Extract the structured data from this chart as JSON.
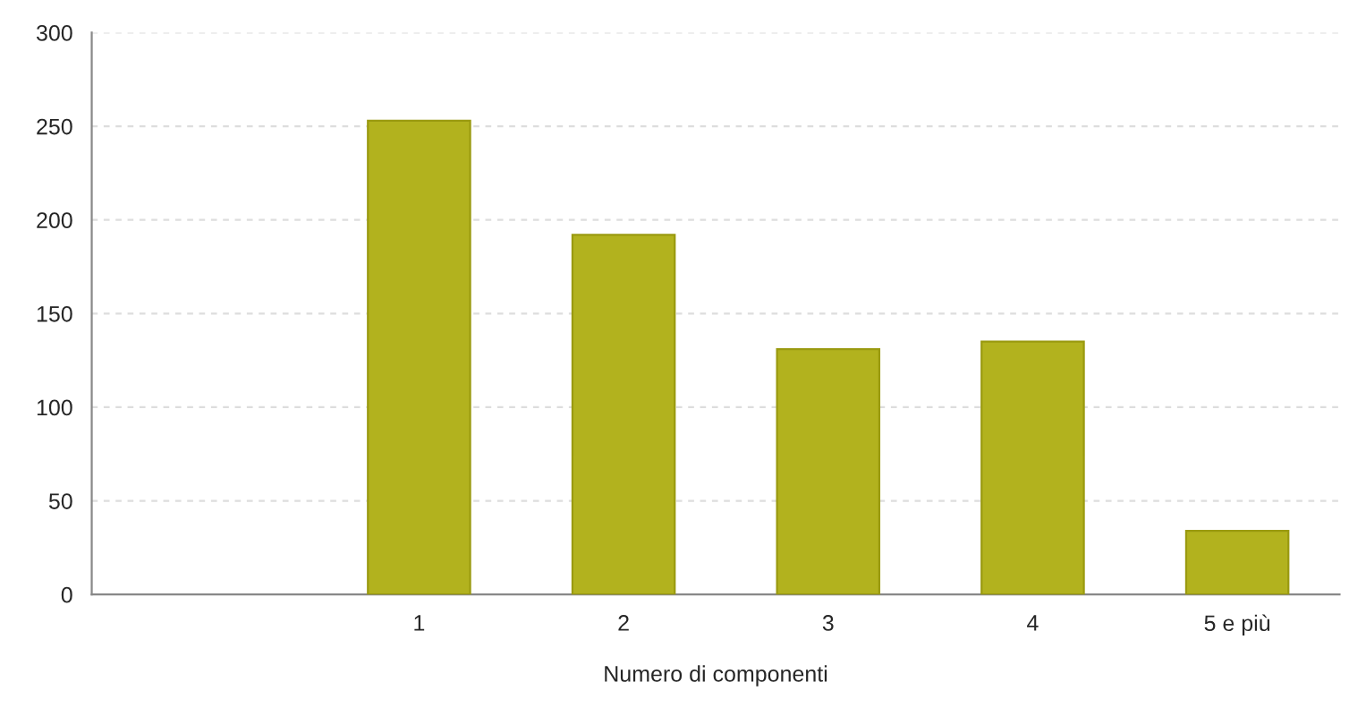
{
  "chart_data": {
    "type": "bar",
    "xlabel": "Numero di componenti",
    "categories": [
      null,
      "1",
      "2",
      "3",
      "4",
      "5 e più"
    ],
    "values": [
      null,
      253,
      192,
      131,
      135,
      34
    ],
    "color": "#b2b21e",
    "ylim": [
      0,
      300
    ],
    "yticks": [
      0,
      50,
      100,
      150,
      200,
      250,
      300
    ],
    "grid": "y"
  }
}
